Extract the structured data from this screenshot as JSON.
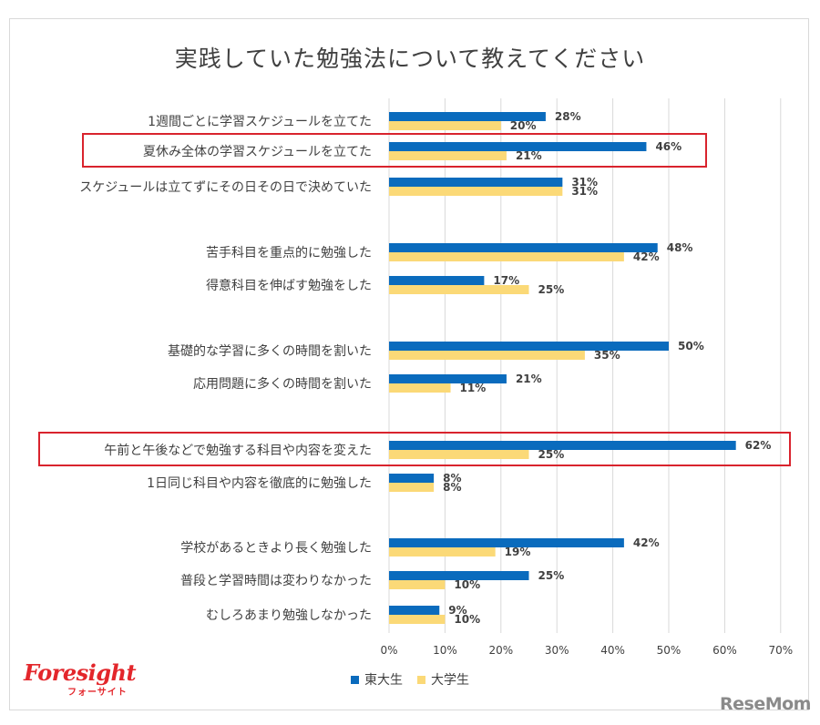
{
  "chart_data": {
    "type": "bar",
    "orientation": "horizontal",
    "title": "実践していた勉強法について教えてください",
    "categories": [
      "1週間ごとに学習スケジュールを立てた",
      "夏休み全体の学習スケジュールを立てた",
      "スケジュールは立てずにその日その日で決めていた",
      "苦手科目を重点的に勉強した",
      "得意科目を伸ばす勉強をした",
      "基礎的な学習に多くの時間を割いた",
      "応用問題に多くの時間を割いた",
      "午前と午後などで勉強する科目や内容を変えた",
      "1日同じ科目や内容を徹底的に勉強した",
      "学校があるときより長く勉強した",
      "普段と学習時間は変わりなかった",
      "むしろあまり勉強しなかった"
    ],
    "highlighted": [
      "夏休み全体の学習スケジュールを立てた",
      "午前と午後などで勉強する科目や内容を変えた"
    ],
    "series": [
      {
        "name": "東大生",
        "color": "#0a6bbd",
        "values": [
          28,
          46,
          31,
          48,
          17,
          50,
          21,
          62,
          8,
          42,
          25,
          9
        ]
      },
      {
        "name": "大学生",
        "color": "#fbd977",
        "values": [
          20,
          21,
          31,
          42,
          25,
          35,
          11,
          25,
          8,
          19,
          10,
          10
        ]
      }
    ],
    "xlim": [
      0,
      70
    ],
    "xticks": [
      "0%",
      "10%",
      "20%",
      "30%",
      "40%",
      "50%",
      "60%",
      "70%"
    ],
    "value_suffix": "%",
    "grid": true,
    "legend": "bottom"
  },
  "branding": {
    "logo_main": "Foresight",
    "logo_sub": "フォーサイト",
    "watermark": "ReseMom"
  }
}
